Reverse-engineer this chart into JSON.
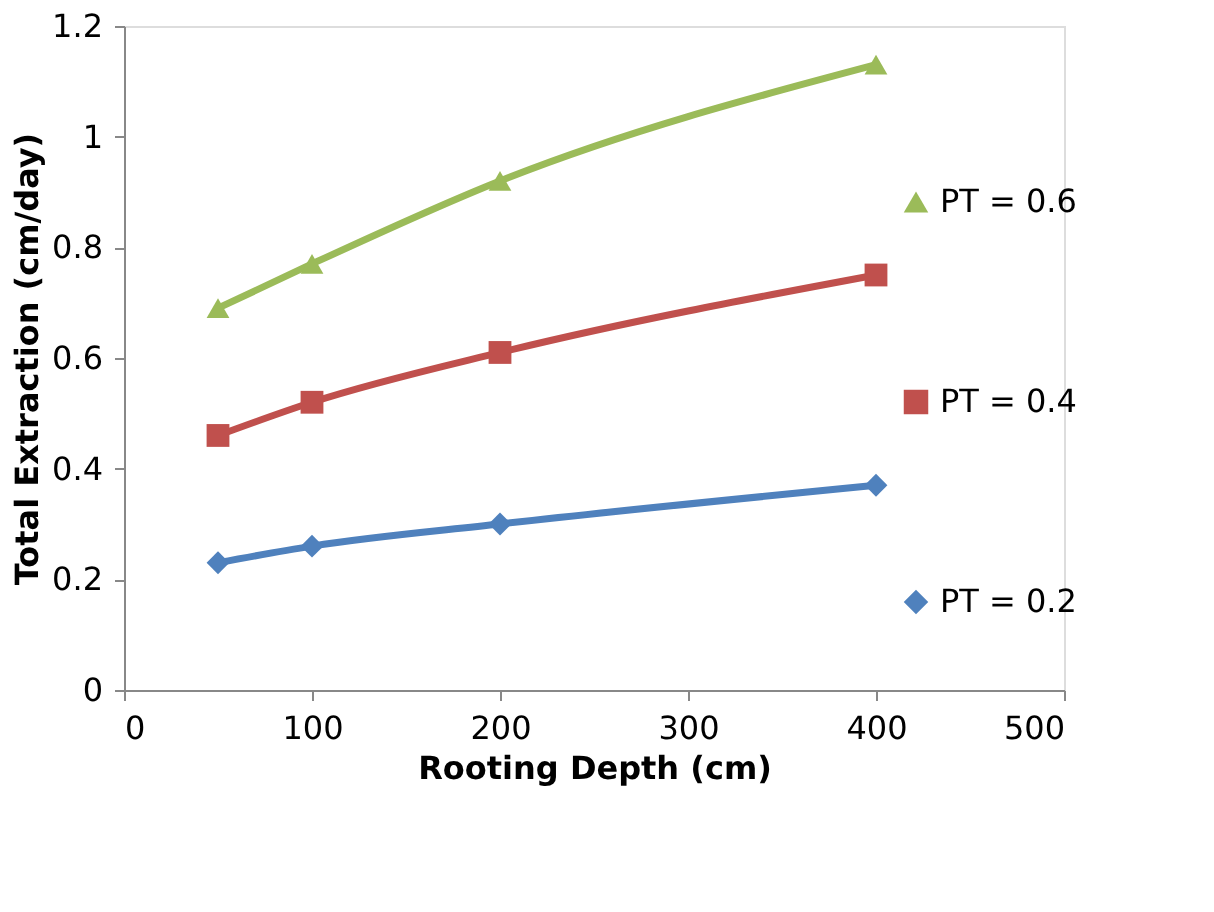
{
  "chart_data": {
    "type": "line",
    "xlabel": "Rooting Depth (cm)",
    "ylabel": "Total Extraction (cm/day)",
    "x": [
      50,
      100,
      200,
      400
    ],
    "xlim": [
      0,
      500
    ],
    "xticks": [
      0,
      100,
      200,
      300,
      400,
      500
    ],
    "ylim": [
      0,
      1.2
    ],
    "yticks": [
      {
        "value": 0,
        "label": "0"
      },
      0.2,
      0.4,
      0.6,
      0.8,
      {
        "value": 1,
        "label": "1"
      },
      1.2
    ],
    "grid": false,
    "legend": "right",
    "line_style": "solid",
    "series": [
      {
        "name": "PT = 0.6",
        "color": "#9bbb59",
        "marker": "triangle",
        "values": [
          0.69,
          0.77,
          0.92,
          1.13
        ]
      },
      {
        "name": "PT = 0.4",
        "color": "#c0504d",
        "marker": "square",
        "values": [
          0.46,
          0.52,
          0.61,
          0.75
        ]
      },
      {
        "name": "PT = 0.2",
        "color": "#4f81bd",
        "marker": "diamond",
        "values": [
          0.23,
          0.26,
          0.3,
          0.37
        ]
      }
    ]
  }
}
